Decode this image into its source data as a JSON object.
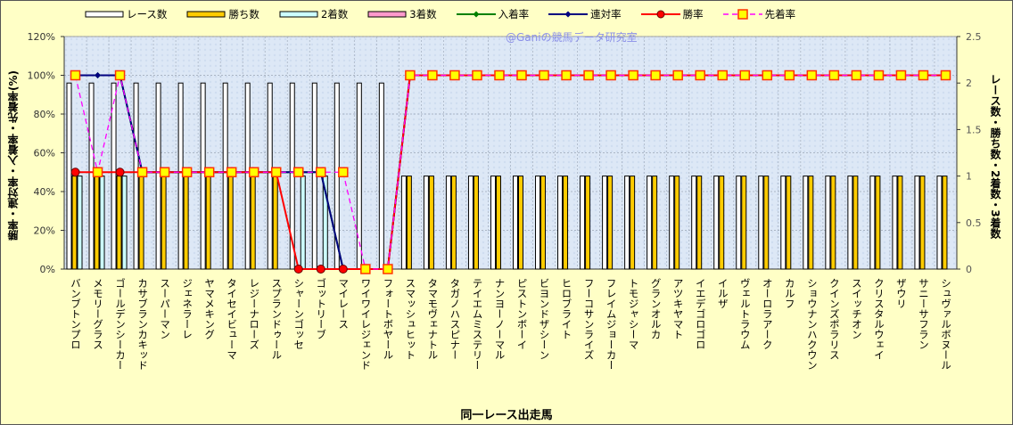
{
  "chart_data": {
    "type": "bar",
    "watermark": "@Ganiの競馬データ研究室",
    "xlabel": "同一レース出走馬",
    "ylabel_left": "勝率・連対率・入着率・先着率(%)",
    "ylabel_right": "レース数・勝ち数・2着数・3着数",
    "ylim_left": [
      0,
      120
    ],
    "ylim_right": [
      0,
      2.5
    ],
    "yticks_left": [
      "0%",
      "20%",
      "40%",
      "60%",
      "80%",
      "100%",
      "120%"
    ],
    "yticks_right": [
      "0",
      "0.5",
      "1",
      "1.5",
      "2",
      "2.5"
    ],
    "grid": true,
    "legend_position": "top",
    "categories": [
      "バンブトンプロ",
      "メモリーグラス",
      "ゴールデンシーカー",
      "カサブランカキッド",
      "スーパーマン",
      "ジェネラーレ",
      "ヤマメキング",
      "タイセイビューマ",
      "レジーナローズ",
      "スプランドゥール",
      "シャーンゴッセ",
      "ゴットリーブ",
      "マイレース",
      "ワイワイレジェンド",
      "フォートボヤール",
      "スマッシュヒット",
      "タマモヴェナトル",
      "タガノハスピナー",
      "テイエムミステリー",
      "ナンヨーノーマル",
      "ピストンボーイ",
      "ビヨンドザシーン",
      "ヒロブライト",
      "フーコサンライズ",
      "フレイムジョーカー",
      "トモジャシーマ",
      "グランオルカ",
      "アツキヤマト",
      "イエデゴロゴロ",
      "イルザ",
      "ヴェルトラウム",
      "オーロラアーク",
      "カルフ",
      "ショウナンハクウン",
      "クインズポラリス",
      "スイッチオン",
      "クリスタルウェイ",
      "ザウリ",
      "サニーサフラン",
      "シュヴァルボヌール"
    ],
    "series": [
      {
        "name": "レース数",
        "axis": "right",
        "kind": "bar",
        "color": "#FFFFFF",
        "values": [
          2,
          2,
          2,
          2,
          2,
          2,
          2,
          2,
          2,
          2,
          2,
          2,
          2,
          2,
          2,
          1,
          1,
          1,
          1,
          1,
          1,
          1,
          1,
          1,
          1,
          1,
          1,
          1,
          1,
          1,
          1,
          1,
          1,
          1,
          1,
          1,
          1,
          1,
          1,
          1
        ]
      },
      {
        "name": "勝ち数",
        "axis": "right",
        "kind": "bar",
        "color": "#FFCC00",
        "values": [
          1,
          1,
          1,
          1,
          1,
          1,
          1,
          1,
          1,
          1,
          0,
          0,
          0,
          0,
          0,
          1,
          1,
          1,
          1,
          1,
          1,
          1,
          1,
          1,
          1,
          1,
          1,
          1,
          1,
          1,
          1,
          1,
          1,
          1,
          1,
          1,
          1,
          1,
          1,
          1
        ]
      },
      {
        "name": "2着数",
        "axis": "right",
        "kind": "bar",
        "color": "#CCFFFF",
        "values": [
          1,
          1,
          1,
          0,
          0,
          0,
          0,
          0,
          0,
          0,
          1,
          1,
          0,
          0,
          0,
          0,
          0,
          0,
          0,
          0,
          0,
          0,
          0,
          0,
          0,
          0,
          0,
          0,
          0,
          0,
          0,
          0,
          0,
          0,
          0,
          0,
          0,
          0,
          0,
          0
        ]
      },
      {
        "name": "3着数",
        "axis": "right",
        "kind": "bar",
        "color": "#FF99CC",
        "values": [
          0,
          0,
          0,
          0,
          0,
          0,
          0,
          0,
          0,
          0,
          0,
          0,
          0,
          0,
          0,
          0,
          0,
          0,
          0,
          0,
          0,
          0,
          0,
          0,
          0,
          0,
          0,
          0,
          0,
          0,
          0,
          0,
          0,
          0,
          0,
          0,
          0,
          0,
          0,
          0
        ]
      },
      {
        "name": "入着率",
        "axis": "left",
        "kind": "line",
        "color": "#008000",
        "values": [
          100,
          100,
          100,
          50,
          50,
          50,
          50,
          50,
          50,
          50,
          50,
          50,
          0,
          0,
          0,
          100,
          100,
          100,
          100,
          100,
          100,
          100,
          100,
          100,
          100,
          100,
          100,
          100,
          100,
          100,
          100,
          100,
          100,
          100,
          100,
          100,
          100,
          100,
          100,
          100
        ]
      },
      {
        "name": "連対率",
        "axis": "left",
        "kind": "line",
        "color": "#000080",
        "values": [
          100,
          100,
          100,
          50,
          50,
          50,
          50,
          50,
          50,
          50,
          50,
          50,
          0,
          0,
          0,
          100,
          100,
          100,
          100,
          100,
          100,
          100,
          100,
          100,
          100,
          100,
          100,
          100,
          100,
          100,
          100,
          100,
          100,
          100,
          100,
          100,
          100,
          100,
          100,
          100
        ]
      },
      {
        "name": "勝率",
        "axis": "left",
        "kind": "line",
        "color": "#FF0000",
        "values": [
          50,
          50,
          50,
          50,
          50,
          50,
          50,
          50,
          50,
          50,
          0,
          0,
          0,
          0,
          0,
          100,
          100,
          100,
          100,
          100,
          100,
          100,
          100,
          100,
          100,
          100,
          100,
          100,
          100,
          100,
          100,
          100,
          100,
          100,
          100,
          100,
          100,
          100,
          100,
          100
        ]
      },
      {
        "name": "先着率",
        "axis": "left",
        "kind": "dashed-line",
        "color": "#FF00FF",
        "values": [
          100,
          50,
          100,
          50,
          50,
          50,
          50,
          50,
          50,
          50,
          50,
          50,
          50,
          0,
          0,
          100,
          100,
          100,
          100,
          100,
          100,
          100,
          100,
          100,
          100,
          100,
          100,
          100,
          100,
          100,
          100,
          100,
          100,
          100,
          100,
          100,
          100,
          100,
          100,
          100
        ]
      }
    ]
  }
}
